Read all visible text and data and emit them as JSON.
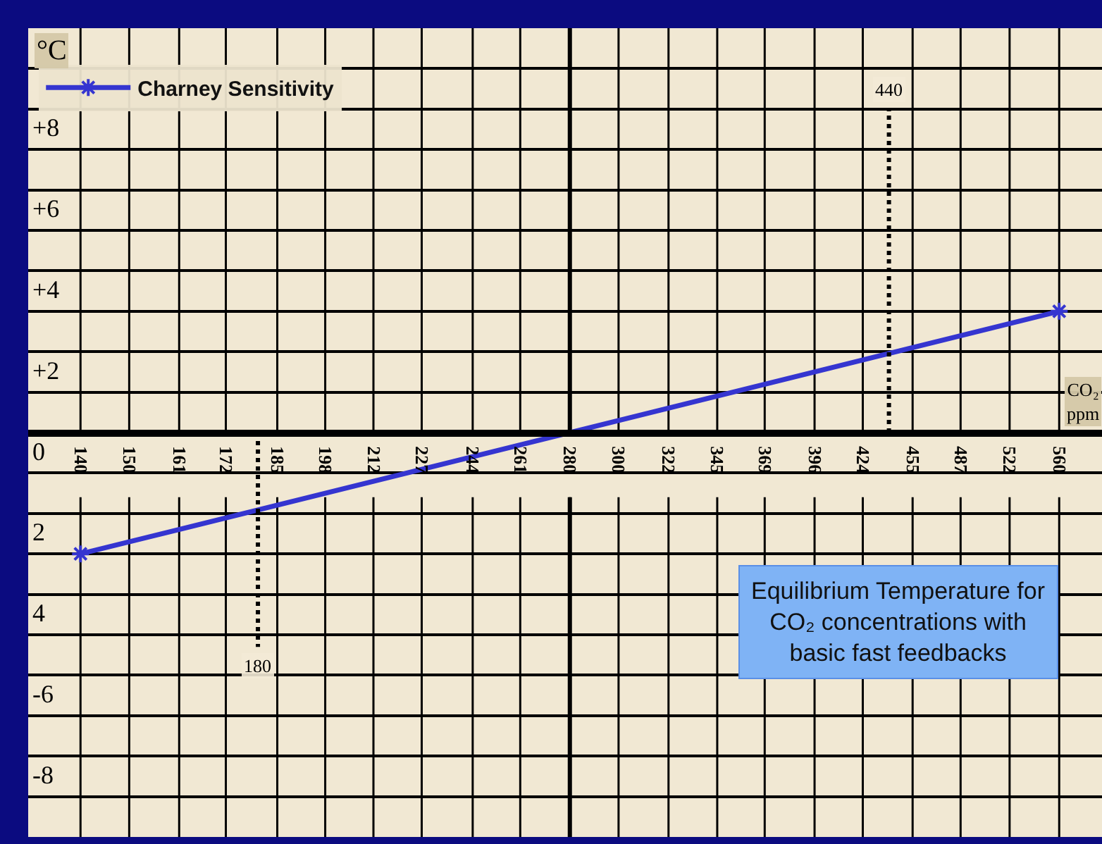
{
  "chart_data": {
    "type": "line",
    "xlabel": "CO₂ ppm",
    "ylabel": "°C",
    "log": "x",
    "xlim": [
      130,
      595
    ],
    "xticks": [
      140,
      150,
      161,
      172,
      185,
      198,
      212,
      227,
      244,
      261,
      280,
      300,
      322,
      345,
      369,
      396,
      424,
      455,
      487,
      522,
      560
    ],
    "ylim": [
      -10,
      10
    ],
    "yticks": [
      {
        "value": -10,
        "label": null
      },
      {
        "value": -9,
        "label": null
      },
      {
        "value": -8,
        "label": "-8"
      },
      {
        "value": -7,
        "label": null
      },
      {
        "value": -6,
        "label": "-6"
      },
      {
        "value": -5,
        "label": null
      },
      {
        "value": -4,
        "label": "4"
      },
      {
        "value": -3,
        "label": null
      },
      {
        "value": -2,
        "label": "2"
      },
      {
        "value": -1,
        "label": null
      },
      {
        "value": 0,
        "label": "0"
      },
      {
        "value": 1,
        "label": null
      },
      {
        "value": 2,
        "label": "+2"
      },
      {
        "value": 3,
        "label": null
      },
      {
        "value": 4,
        "label": "+4"
      },
      {
        "value": 5,
        "label": null
      },
      {
        "value": 6,
        "label": "+6"
      },
      {
        "value": 7,
        "label": null
      },
      {
        "value": 8,
        "label": "+8"
      },
      {
        "value": 9,
        "label": null
      },
      {
        "value": 10,
        "label": null
      }
    ],
    "series": [
      {
        "name": "Charney Sensitivity",
        "color": "#3535d0",
        "x": [
          140,
          560
        ],
        "values": [
          -3,
          3
        ],
        "marker": "cross",
        "line_style": "solid"
      },
      {
        "color": "#000000",
        "x": [
          180,
          180
        ],
        "values": [
          0,
          -5.3
        ],
        "marker": "none",
        "line_style": "dotted"
      },
      {
        "color": "#000000",
        "x": [
          440,
          440
        ],
        "values": [
          0,
          8
        ],
        "marker": "none",
        "line_style": "dotted"
      }
    ],
    "ref_lines": [
      {
        "axis": "x",
        "value": 280,
        "color": "#000000",
        "line_style": "solid"
      }
    ],
    "annotations": [
      {
        "text": "180",
        "x": 180,
        "y": -5.3
      },
      {
        "text": "440",
        "x": 440,
        "y": 8
      },
      "Equilibrium Temperature for\nCO₂ concentrations with\nbasic fast feedbacks"
    ],
    "grid": true,
    "legend": "top left"
  }
}
